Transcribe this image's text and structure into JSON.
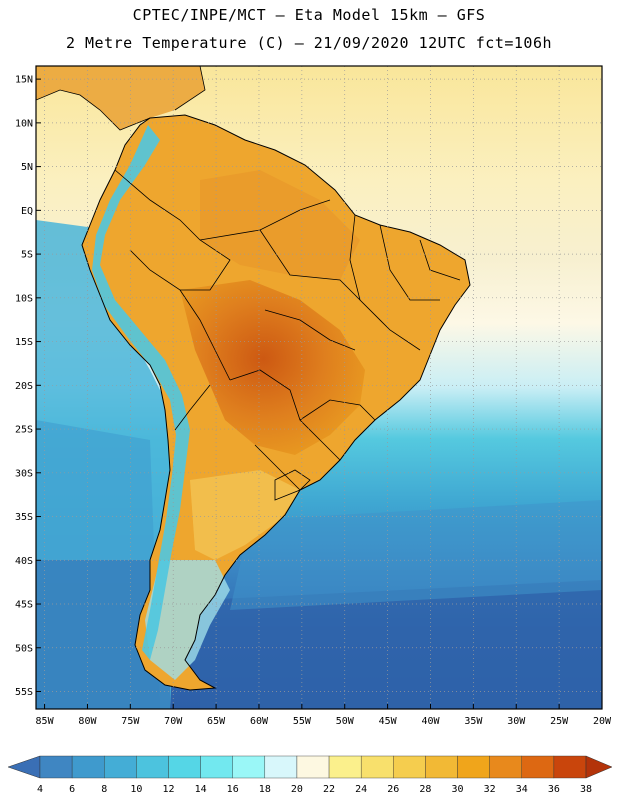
{
  "header": {
    "line1": "CPTEC/INPE/MCT –  Eta Model 15km – GFS",
    "line2": "2 Metre Temperature (C) – 21/09/2020 12UTC fct=106h"
  },
  "axes": {
    "lat_labels": [
      "15N",
      "10N",
      "5N",
      "EQ",
      "5S",
      "10S",
      "15S",
      "20S",
      "25S",
      "30S",
      "35S",
      "40S",
      "45S",
      "50S",
      "55S"
    ],
    "lat_values": [
      15,
      10,
      5,
      0,
      -5,
      -10,
      -15,
      -20,
      -25,
      -30,
      -35,
      -40,
      -45,
      -50,
      -55
    ],
    "lon_labels": [
      "85W",
      "80W",
      "75W",
      "70W",
      "65W",
      "60W",
      "55W",
      "50W",
      "45W",
      "40W",
      "35W",
      "30W",
      "25W",
      "20W"
    ],
    "lon_values": [
      -85,
      -80,
      -75,
      -70,
      -65,
      -60,
      -55,
      -50,
      -45,
      -40,
      -35,
      -30,
      -25,
      -20
    ],
    "lat_range": [
      -57,
      16.5
    ],
    "lon_range": [
      -86,
      -20
    ]
  },
  "colorbar": {
    "labels": [
      "4",
      "6",
      "8",
      "10",
      "12",
      "14",
      "16",
      "18",
      "20",
      "22",
      "24",
      "26",
      "28",
      "30",
      "32",
      "34",
      "36",
      "38"
    ],
    "colors": [
      "#3a6fb5",
      "#3f86c2",
      "#3f9acd",
      "#44add6",
      "#4cc3de",
      "#55d6e6",
      "#72e8ef",
      "#9af7f7",
      "#d8f7fb",
      "#fdf8e1",
      "#fbf08c",
      "#f8e06c",
      "#f5cd4e",
      "#f2b935",
      "#f0a51b",
      "#e8891c",
      "#dd6812",
      "#c9450c",
      "#b3330a"
    ]
  },
  "palette": {
    "ocean_cold": "#2f64ab",
    "ocean_mid": "#3f8fc8",
    "ocean_cool": "#53bfd9",
    "ocean_warm": "#fbf3c6",
    "land_hot": "#e59a2a",
    "land_hotter": "#cf6218",
    "andes": "#55d6e6"
  }
}
